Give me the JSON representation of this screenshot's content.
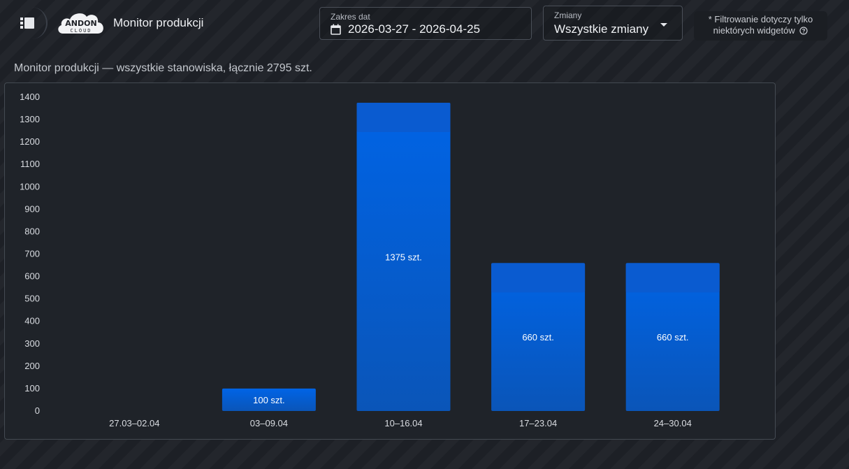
{
  "header": {
    "app_title": "Monitor produkcji",
    "logo_text_top": "ANDON",
    "logo_text_bottom": "CLOUD",
    "menu_icon": "list-menu-icon"
  },
  "date_range": {
    "label": "Zakres dat",
    "value": "2026-03-27 - 2026-04-25",
    "icon": "calendar-icon"
  },
  "shifts": {
    "label": "Zmiany",
    "value": "Wszystkie zmiany",
    "icon": "caret-down-icon"
  },
  "filter_note": {
    "line1": "* Filtrowanie dotyczy tylko",
    "line2": "niektórych widgetów",
    "icon": "help-circle-icon"
  },
  "widget": {
    "title": "Monitor produkcji — wszystkie stanowiska, łącznie 2795 szt."
  },
  "colors": {
    "bar_top": "#0064e6",
    "bar_bottom": "#0a55b8",
    "bar_cap": "#0a5bd0",
    "background": "#1d2026",
    "panel": "#1f2329"
  },
  "chart_data": {
    "type": "bar",
    "categories": [
      "27.03–02.04",
      "03–09.04",
      "10–16.04",
      "17–23.04",
      "24–30.04"
    ],
    "values": [
      0,
      100,
      1375,
      660,
      660
    ],
    "value_labels": [
      "",
      "100 szt.",
      "1375 szt.",
      "660 szt.",
      "660 szt."
    ],
    "yticks": [
      0,
      100,
      200,
      300,
      400,
      500,
      600,
      700,
      800,
      900,
      1000,
      1100,
      1200,
      1300,
      1400
    ],
    "ylim": [
      0,
      1400
    ],
    "grid": false,
    "legend": false
  }
}
